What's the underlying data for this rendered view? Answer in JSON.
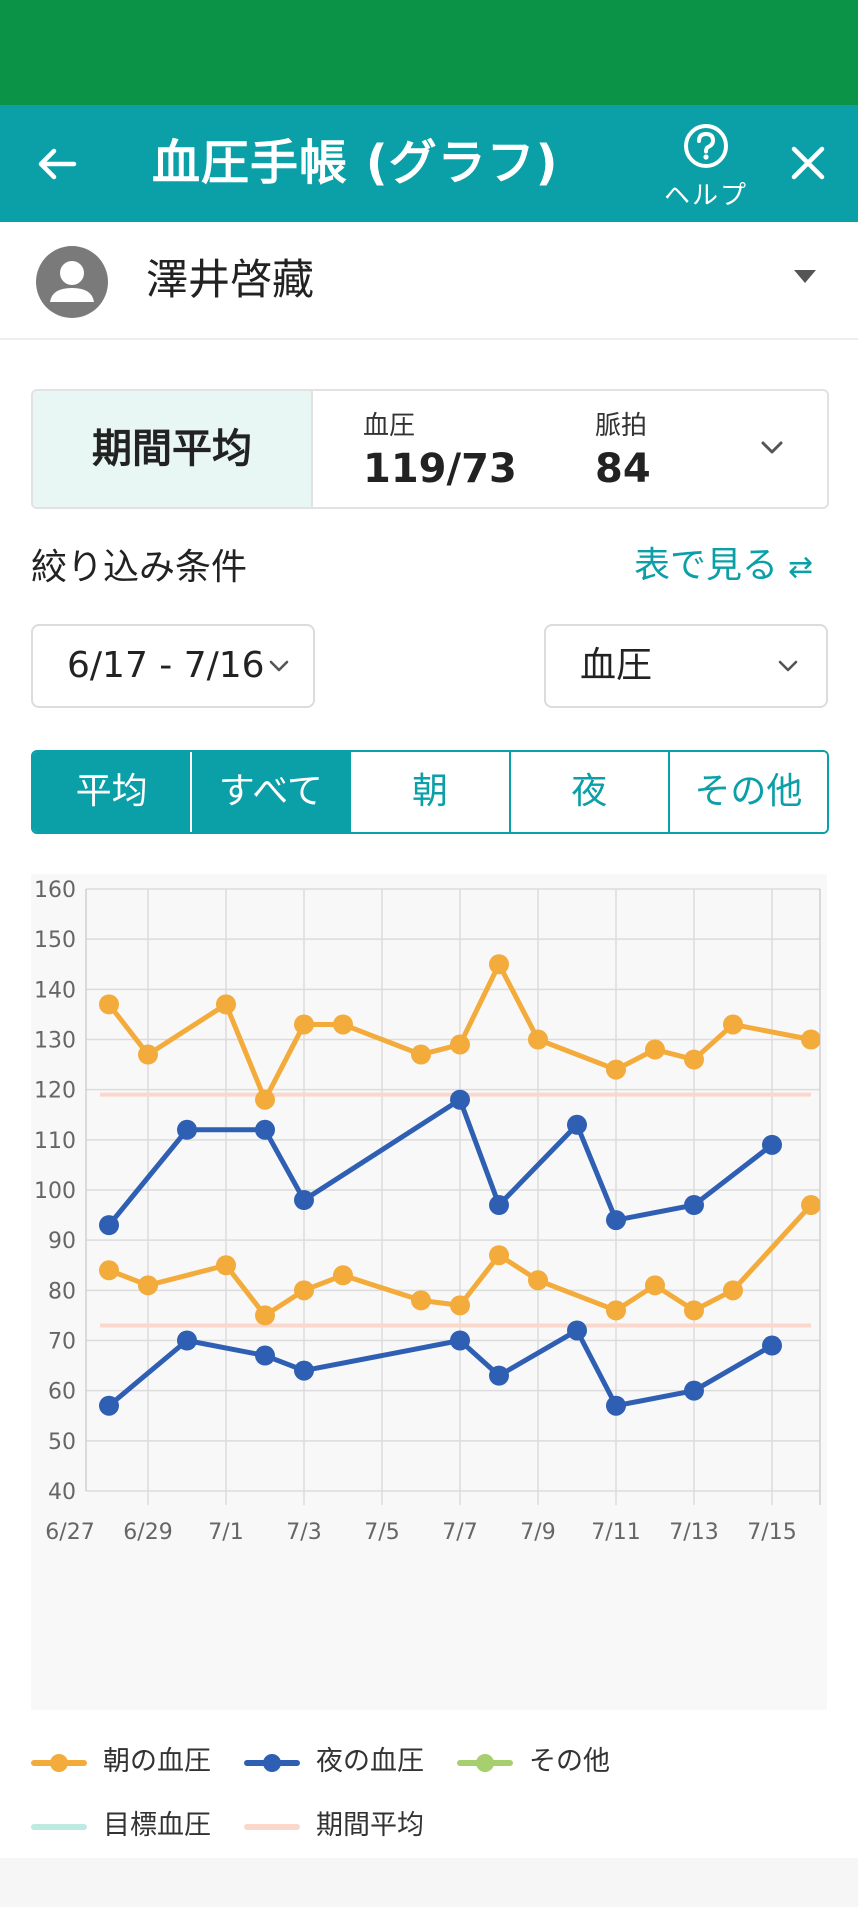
{
  "header": {
    "title": "血圧手帳 (グラフ)",
    "help_label": "ヘルプ"
  },
  "user": {
    "name": "澤井啓藏"
  },
  "summary": {
    "label": "期間平均",
    "bp_label": "血圧",
    "bp_value": "119/73",
    "pulse_label": "脈拍",
    "pulse_value": "84"
  },
  "filter": {
    "label": "絞り込み条件",
    "table_link": "表で見る",
    "date_range": "6/17 - 7/16",
    "type": "血圧"
  },
  "segments": [
    {
      "label": "平均",
      "active": true
    },
    {
      "label": "すべて",
      "active": true
    },
    {
      "label": "朝",
      "active": false
    },
    {
      "label": "夜",
      "active": false
    },
    {
      "label": "その他",
      "active": false
    }
  ],
  "colors": {
    "morning": "#f3ab3b",
    "night": "#2f5fb3",
    "other": "#a6cf6e",
    "target": "#bfeae2",
    "average": "#fbd8cc",
    "accent": "#0b9fa7"
  },
  "chart_data": {
    "type": "line",
    "x_ticks": [
      "6/27",
      "6/29",
      "7/1",
      "7/3",
      "7/5",
      "7/7",
      "7/9",
      "7/11",
      "7/13",
      "7/15"
    ],
    "y_ticks": [
      160,
      150,
      140,
      130,
      120,
      110,
      100,
      90,
      80,
      70,
      60,
      50,
      40
    ],
    "ylim": [
      40,
      160
    ],
    "xlim": [
      "6/27",
      "7/17"
    ],
    "grid": true,
    "legend_position": "bottom",
    "series": [
      {
        "name": "朝の血圧",
        "kind": "systolic",
        "color": "#f3ab3b",
        "points": [
          [
            "6/28",
            137
          ],
          [
            "6/29",
            127
          ],
          [
            "7/1",
            137
          ],
          [
            "7/2",
            118
          ],
          [
            "7/3",
            133
          ],
          [
            "7/4",
            133
          ],
          [
            "7/6",
            127
          ],
          [
            "7/7",
            129
          ],
          [
            "7/8",
            145
          ],
          [
            "7/9",
            130
          ],
          [
            "7/11",
            124
          ],
          [
            "7/12",
            128
          ],
          [
            "7/13",
            126
          ],
          [
            "7/14",
            133
          ],
          [
            "7/16",
            130
          ]
        ]
      },
      {
        "name": "朝の血圧",
        "kind": "diastolic",
        "color": "#f3ab3b",
        "points": [
          [
            "6/28",
            84
          ],
          [
            "6/29",
            81
          ],
          [
            "7/1",
            85
          ],
          [
            "7/2",
            75
          ],
          [
            "7/3",
            80
          ],
          [
            "7/4",
            83
          ],
          [
            "7/6",
            78
          ],
          [
            "7/7",
            77
          ],
          [
            "7/8",
            87
          ],
          [
            "7/9",
            82
          ],
          [
            "7/11",
            76
          ],
          [
            "7/12",
            81
          ],
          [
            "7/13",
            76
          ],
          [
            "7/14",
            80
          ],
          [
            "7/16",
            97
          ]
        ]
      },
      {
        "name": "夜の血圧",
        "kind": "systolic",
        "color": "#2f5fb3",
        "points": [
          [
            "6/28",
            93
          ],
          [
            "6/30",
            112
          ],
          [
            "7/2",
            112
          ],
          [
            "7/3",
            98
          ],
          [
            "7/7",
            118
          ],
          [
            "7/8",
            97
          ],
          [
            "7/10",
            113
          ],
          [
            "7/11",
            94
          ],
          [
            "7/13",
            97
          ],
          [
            "7/15",
            109
          ]
        ]
      },
      {
        "name": "夜の血圧",
        "kind": "diastolic",
        "color": "#2f5fb3",
        "points": [
          [
            "6/28",
            57
          ],
          [
            "6/30",
            70
          ],
          [
            "7/2",
            67
          ],
          [
            "7/3",
            64
          ],
          [
            "7/7",
            70
          ],
          [
            "7/8",
            63
          ],
          [
            "7/10",
            72
          ],
          [
            "7/11",
            57
          ],
          [
            "7/13",
            60
          ],
          [
            "7/15",
            69
          ]
        ]
      }
    ],
    "average_lines": [
      119,
      73
    ],
    "legend": [
      {
        "label": "朝の血圧",
        "color": "#f3ab3b",
        "marker": true
      },
      {
        "label": "夜の血圧",
        "color": "#2f5fb3",
        "marker": true
      },
      {
        "label": "その他",
        "color": "#a6cf6e",
        "marker": true
      },
      {
        "label": "目標血圧",
        "color": "#bfeae2",
        "marker": false
      },
      {
        "label": "期間平均",
        "color": "#fbd8cc",
        "marker": false
      }
    ]
  }
}
